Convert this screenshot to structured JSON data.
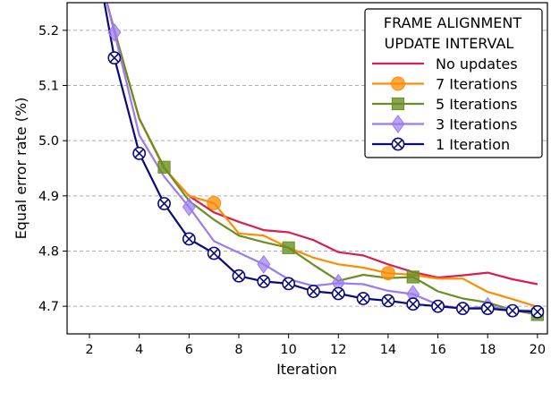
{
  "chart_data": {
    "type": "line",
    "xlabel": "Iteration",
    "ylabel": "Equal error rate (%)",
    "xlim": [
      1.1,
      20.4
    ],
    "ylim": [
      4.65,
      5.25
    ],
    "x_ticks": [
      2,
      4,
      6,
      8,
      10,
      12,
      14,
      16,
      18,
      20
    ],
    "y_ticks": [
      4.7,
      4.8,
      4.9,
      5.0,
      5.1,
      5.2
    ],
    "grid": "horizontal-dashed",
    "legend": {
      "title_lines": [
        "FRAME ALIGNMENT",
        "UPDATE INTERVAL"
      ],
      "placement": "top-right"
    },
    "series": [
      {
        "name": "No updates",
        "color": "#d6204f",
        "marker": "none",
        "points": [
          [
            2.7,
            5.25
          ],
          [
            3,
            5.2
          ],
          [
            4,
            5.04
          ],
          [
            5,
            4.95
          ],
          [
            6,
            4.9
          ],
          [
            7,
            4.87
          ],
          [
            8,
            4.853
          ],
          [
            9,
            4.838
          ],
          [
            10,
            4.834
          ],
          [
            11,
            4.82
          ],
          [
            12,
            4.798
          ],
          [
            13,
            4.792
          ],
          [
            14,
            4.776
          ],
          [
            15,
            4.762
          ],
          [
            16,
            4.752
          ],
          [
            17,
            4.756
          ],
          [
            18,
            4.761
          ],
          [
            19,
            4.749
          ],
          [
            20,
            4.74
          ]
        ],
        "marker_points": []
      },
      {
        "name": "7 Iterations",
        "color": "#ff8c00",
        "marker": "circle",
        "points": [
          [
            2.7,
            5.25
          ],
          [
            3,
            5.2
          ],
          [
            4,
            5.04
          ],
          [
            5,
            4.95
          ],
          [
            6,
            4.9
          ],
          [
            7,
            4.887
          ],
          [
            8,
            4.832
          ],
          [
            9,
            4.828
          ],
          [
            10,
            4.806
          ],
          [
            11,
            4.788
          ],
          [
            12,
            4.776
          ],
          [
            13,
            4.77
          ],
          [
            14,
            4.76
          ],
          [
            15,
            4.757
          ],
          [
            16,
            4.75
          ],
          [
            17,
            4.75
          ],
          [
            18,
            4.726
          ],
          [
            19,
            4.713
          ],
          [
            20,
            4.699
          ]
        ],
        "marker_points": [
          [
            7,
            4.887
          ],
          [
            14,
            4.76
          ]
        ]
      },
      {
        "name": "5 Iterations",
        "color": "#6b8e23",
        "marker": "square",
        "points": [
          [
            2.7,
            5.25
          ],
          [
            3,
            5.2
          ],
          [
            4,
            5.04
          ],
          [
            5,
            4.952
          ],
          [
            6,
            4.891
          ],
          [
            7,
            4.857
          ],
          [
            8,
            4.828
          ],
          [
            9,
            4.816
          ],
          [
            10,
            4.806
          ],
          [
            11,
            4.775
          ],
          [
            12,
            4.746
          ],
          [
            13,
            4.757
          ],
          [
            14,
            4.751
          ],
          [
            15,
            4.753
          ],
          [
            16,
            4.727
          ],
          [
            17,
            4.714
          ],
          [
            18,
            4.707
          ],
          [
            19,
            4.693
          ],
          [
            20,
            4.685
          ]
        ],
        "marker_points": [
          [
            5,
            4.952
          ],
          [
            10,
            4.806
          ],
          [
            15,
            4.753
          ],
          [
            20,
            4.685
          ]
        ]
      },
      {
        "name": "3 Iterations",
        "color": "#9b7cf0",
        "marker": "diamond",
        "points": [
          [
            2.7,
            5.25
          ],
          [
            3,
            5.196
          ],
          [
            4,
            5.01
          ],
          [
            5,
            4.935
          ],
          [
            6,
            4.88
          ],
          [
            7,
            4.818
          ],
          [
            8,
            4.797
          ],
          [
            9,
            4.776
          ],
          [
            10,
            4.749
          ],
          [
            11,
            4.737
          ],
          [
            12,
            4.742
          ],
          [
            13,
            4.74
          ],
          [
            14,
            4.728
          ],
          [
            15,
            4.722
          ],
          [
            16,
            4.703
          ],
          [
            17,
            4.695
          ],
          [
            18,
            4.7
          ],
          [
            19,
            4.693
          ],
          [
            20,
            4.692
          ]
        ],
        "marker_points": [
          [
            3,
            5.196
          ],
          [
            6,
            4.88
          ],
          [
            9,
            4.776
          ],
          [
            12,
            4.742
          ],
          [
            15,
            4.722
          ],
          [
            18,
            4.7
          ]
        ]
      },
      {
        "name": "1 Iteration",
        "color": "#0a0a7a",
        "marker": "x-circle",
        "points": [
          [
            2.6,
            5.25
          ],
          [
            3,
            5.15
          ],
          [
            4,
            4.977
          ],
          [
            5,
            4.886
          ],
          [
            6,
            4.822
          ],
          [
            7,
            4.796
          ],
          [
            8,
            4.755
          ],
          [
            9,
            4.745
          ],
          [
            10,
            4.741
          ],
          [
            11,
            4.727
          ],
          [
            12,
            4.723
          ],
          [
            13,
            4.714
          ],
          [
            14,
            4.71
          ],
          [
            15,
            4.704
          ],
          [
            16,
            4.7
          ],
          [
            17,
            4.696
          ],
          [
            18,
            4.696
          ],
          [
            19,
            4.692
          ],
          [
            20,
            4.69
          ]
        ],
        "marker_points": [
          [
            3,
            5.15
          ],
          [
            4,
            4.977
          ],
          [
            5,
            4.886
          ],
          [
            6,
            4.822
          ],
          [
            7,
            4.796
          ],
          [
            8,
            4.755
          ],
          [
            9,
            4.745
          ],
          [
            10,
            4.741
          ],
          [
            11,
            4.727
          ],
          [
            12,
            4.723
          ],
          [
            13,
            4.714
          ],
          [
            14,
            4.71
          ],
          [
            15,
            4.704
          ],
          [
            16,
            4.7
          ],
          [
            17,
            4.696
          ],
          [
            18,
            4.696
          ],
          [
            19,
            4.692
          ],
          [
            20,
            4.69
          ]
        ]
      }
    ]
  }
}
